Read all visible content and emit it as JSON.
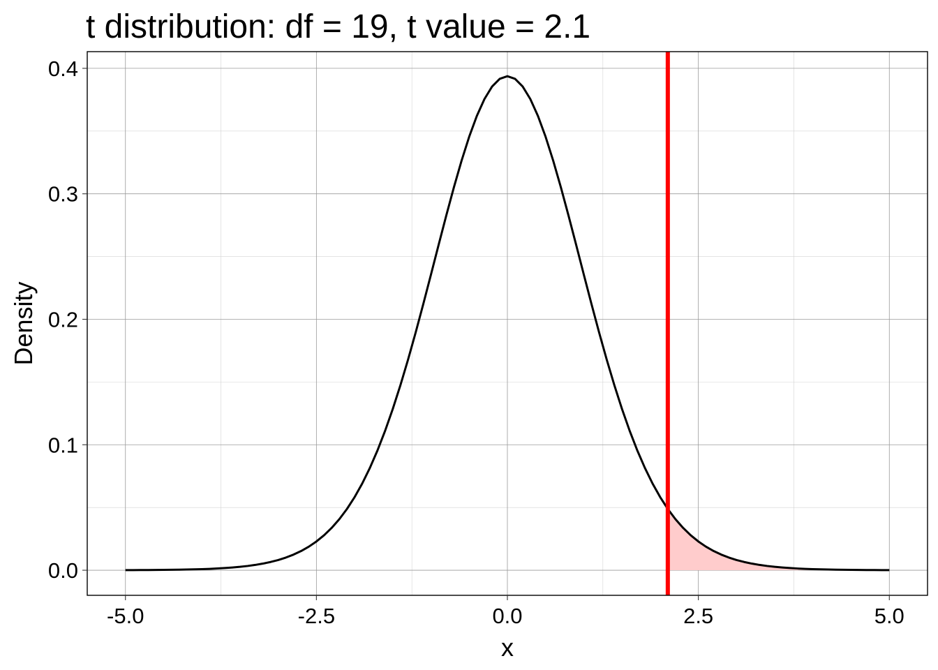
{
  "chart_data": {
    "type": "area",
    "title": "t distribution: df = 19, t value = 2.1",
    "xlabel": "x",
    "ylabel": "Density",
    "xlim": [
      -5.5,
      5.5
    ],
    "ylim": [
      -0.02,
      0.4133
    ],
    "x_ticks": [
      -5.0,
      -2.5,
      0.0,
      2.5,
      5.0
    ],
    "x_tick_labels": [
      "-5.0",
      "-2.5",
      "0.0",
      "2.5",
      "5.0"
    ],
    "y_ticks": [
      0.0,
      0.1,
      0.2,
      0.3,
      0.4
    ],
    "y_tick_labels": [
      "0.0",
      "0.1",
      "0.2",
      "0.3",
      "0.4"
    ],
    "grid": true,
    "legend": "none",
    "distribution": {
      "name": "t",
      "df": 19
    },
    "curve": {
      "x_range": [
        -5,
        5
      ],
      "color": "#000000",
      "sample_points": [
        {
          "x": -5.0,
          "y": 0.0001
        },
        {
          "x": -2.5,
          "y": 0.0225
        },
        {
          "x": -1.0,
          "y": 0.2386
        },
        {
          "x": 0.0,
          "y": 0.3938
        },
        {
          "x": 1.0,
          "y": 0.2386
        },
        {
          "x": 2.1,
          "y": 0.0486
        },
        {
          "x": 2.5,
          "y": 0.0225
        },
        {
          "x": 5.0,
          "y": 0.0001
        }
      ]
    },
    "t_value": 2.1,
    "t_value_line_color": "#ff0000",
    "shaded_region": {
      "from": 2.1,
      "to": 5.0,
      "color": "#ffcccc"
    }
  }
}
